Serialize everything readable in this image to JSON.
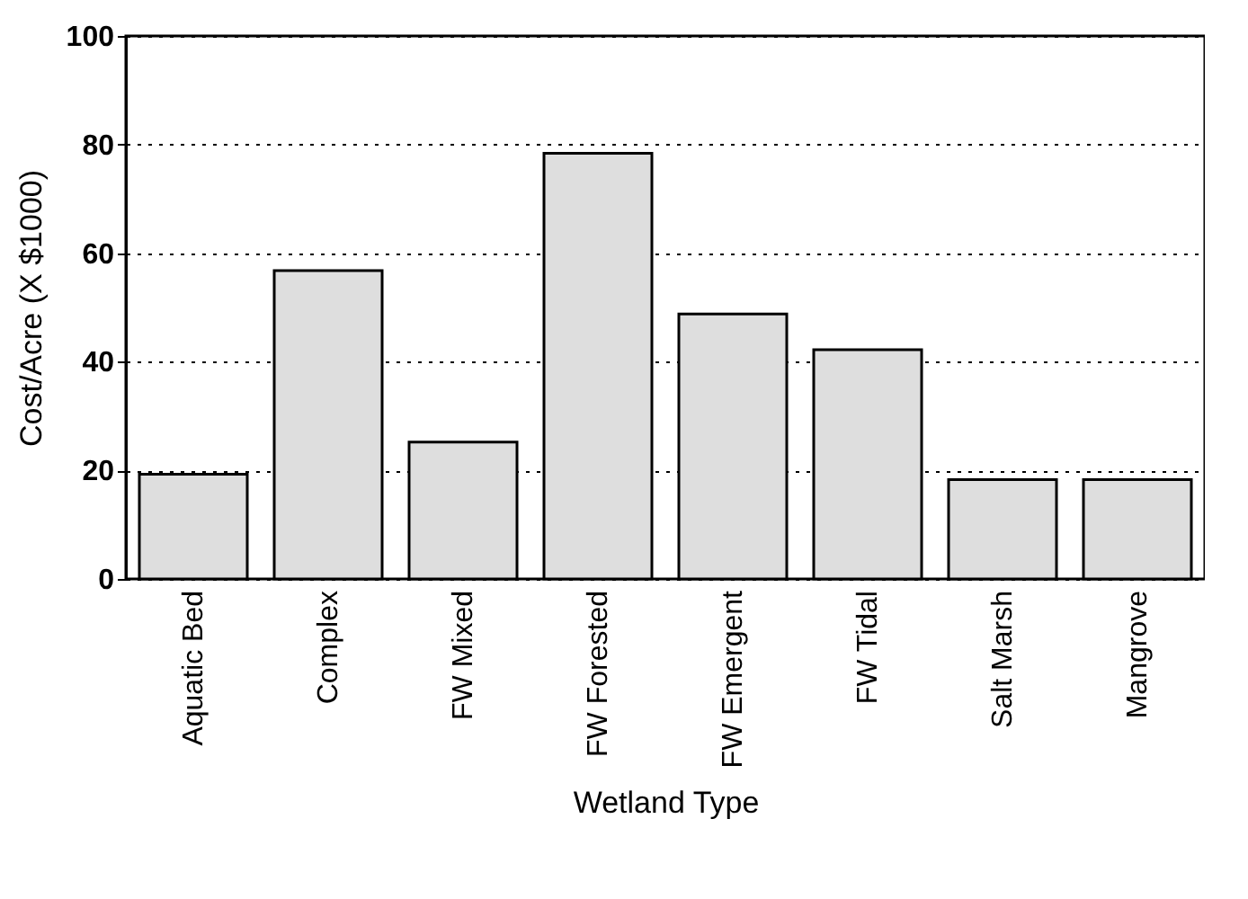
{
  "chart_data": {
    "type": "bar",
    "categories": [
      "Aquatic Bed",
      "Complex",
      "FW Mixed",
      "FW Forested",
      "FW Emergent",
      "FW Tidal",
      "Salt Marsh",
      "Mangrove"
    ],
    "values": [
      19.3,
      56.8,
      25.2,
      78.4,
      48.8,
      42.2,
      18.3,
      18.3
    ],
    "color": "#dedede",
    "xlabel": "Wetland Type",
    "ylabel": "Cost/Acre (X $1000)",
    "ylim": [
      0,
      100
    ],
    "yticks": [
      0,
      20,
      40,
      60,
      80,
      100
    ],
    "grid": "y"
  }
}
